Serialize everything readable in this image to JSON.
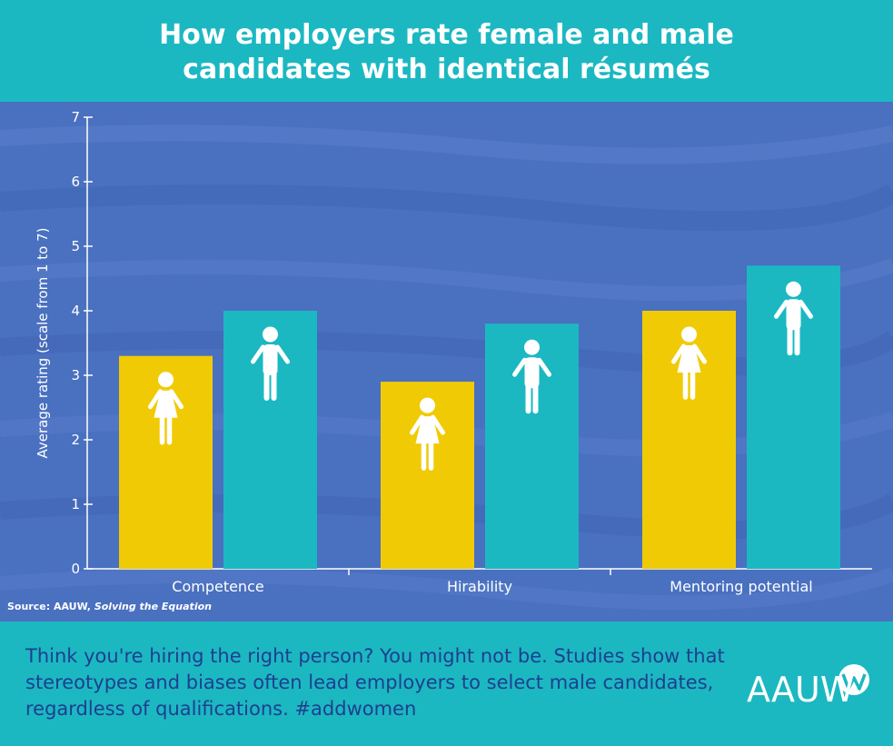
{
  "header": {
    "title_line1": "How employers rate female and male",
    "title_line2": "candidates with identical résumés"
  },
  "colors": {
    "female": "#f0cb05",
    "male": "#1bb8c2",
    "panel": "#4a70c0",
    "text": "#1e3f8f",
    "axis": "#ffffff"
  },
  "chart_data": {
    "type": "bar",
    "categories": [
      "Competence",
      "Hirability",
      "Mentoring potential"
    ],
    "series": [
      {
        "icon": "female-figure-icon",
        "color": "#f0cb05",
        "values": [
          3.3,
          2.9,
          4.0
        ]
      },
      {
        "icon": "male-figure-icon",
        "color": "#1bb8c2",
        "values": [
          4.0,
          3.8,
          4.7
        ]
      }
    ],
    "ylabel": "Average rating (scale from 1 to 7)",
    "ylim": [
      0,
      7
    ],
    "yticks": [
      "0",
      "1",
      "2",
      "3",
      "4",
      "5",
      "6",
      "7"
    ],
    "grid": false,
    "legend": "none"
  },
  "source": {
    "prefix": "Source: AAUW, ",
    "title": "Solving the Equation"
  },
  "footer": {
    "message": "Think you're hiring the right person? You might not be. Studies show that stereotypes and biases often lead employers to select male candidates, regardless of qualifications. #addwomen",
    "logo_text": "AAUW"
  }
}
